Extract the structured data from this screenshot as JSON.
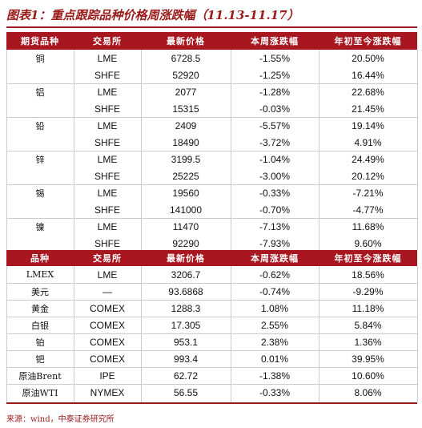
{
  "title": "图表1：重点跟踪品种价格周涨跌幅（11.13-11.17）",
  "table1": {
    "headers": [
      "期货品种",
      "交易所",
      "最新价格",
      "本周涨跌幅",
      "年初至今涨跌幅"
    ],
    "groups": [
      {
        "name": "铜",
        "rows": [
          [
            "LME",
            "6728.5",
            "-1.55%",
            "20.50%"
          ],
          [
            "SHFE",
            "52920",
            "-1.25%",
            "16.44%"
          ]
        ]
      },
      {
        "name": "铝",
        "rows": [
          [
            "LME",
            "2077",
            "-1.28%",
            "22.68%"
          ],
          [
            "SHFE",
            "15315",
            "-0.03%",
            "21.45%"
          ]
        ]
      },
      {
        "name": "铅",
        "rows": [
          [
            "LME",
            "2409",
            "-5.57%",
            "19.14%"
          ],
          [
            "SHFE",
            "18490",
            "-3.72%",
            "4.91%"
          ]
        ]
      },
      {
        "name": "锌",
        "rows": [
          [
            "LME",
            "3199.5",
            "-1.04%",
            "24.49%"
          ],
          [
            "SHFE",
            "25225",
            "-3.00%",
            "20.12%"
          ]
        ]
      },
      {
        "name": "锡",
        "rows": [
          [
            "LME",
            "19560",
            "-0.33%",
            "-7.21%"
          ],
          [
            "SHFE",
            "141000",
            "-0.70%",
            "-4.77%"
          ]
        ]
      },
      {
        "name": "镍",
        "rows": [
          [
            "LME",
            "11470",
            "-7.13%",
            "11.68%"
          ],
          [
            "SHFE",
            "92290",
            "-7.93%",
            "9.60%"
          ]
        ]
      }
    ]
  },
  "table2": {
    "headers": [
      "品种",
      "交易所",
      "最新价格",
      "本周涨跌幅",
      "年初至今涨跌幅"
    ],
    "rows": [
      [
        "LMEX",
        "LME",
        "3206.7",
        "-0.62%",
        "18.56%"
      ],
      [
        "美元",
        "—",
        "93.6868",
        "-0.74%",
        "-9.29%"
      ],
      [
        "黄金",
        "COMEX",
        "1288.3",
        "1.08%",
        "11.18%"
      ],
      [
        "白银",
        "COMEX",
        "17.305",
        "2.55%",
        "5.84%"
      ],
      [
        "铂",
        "COMEX",
        "953.1",
        "2.38%",
        "1.36%"
      ],
      [
        "钯",
        "COMEX",
        "993.4",
        "0.01%",
        "39.95%"
      ],
      [
        "原油Brent",
        "IPE",
        "62.72",
        "-1.38%",
        "10.60%"
      ],
      [
        "原油WTI",
        "NYMEX",
        "56.55",
        "-0.33%",
        "8.06%"
      ]
    ]
  },
  "source": "来源：wind，中泰证券研究所"
}
